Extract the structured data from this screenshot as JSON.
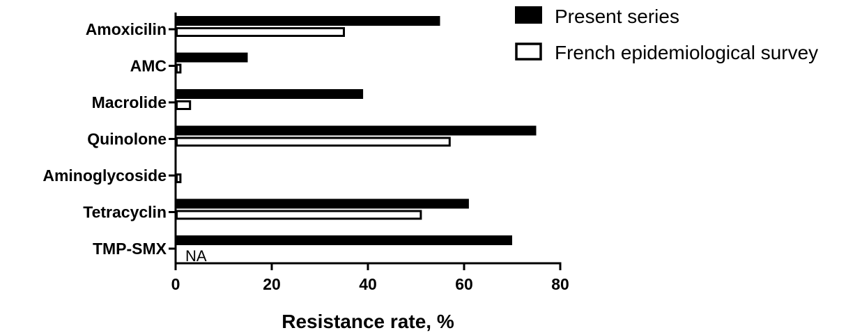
{
  "chart_data": {
    "type": "bar",
    "orientation": "horizontal",
    "categories": [
      "Amoxicilin",
      "AMC",
      "Macrolide",
      "Quinolone",
      "Aminoglycoside",
      "Tetracyclin",
      "TMP-SMX"
    ],
    "series": [
      {
        "name": "Present series",
        "values": [
          55,
          15,
          39,
          75,
          0,
          61,
          70
        ],
        "fill": "#000000"
      },
      {
        "name": "French epidemiological survey",
        "values": [
          35,
          1,
          3,
          57,
          1,
          51,
          null
        ],
        "fill": "#ffffff"
      }
    ],
    "annotations": [
      {
        "category": "TMP-SMX",
        "series": "French epidemiological survey",
        "text": "NA"
      }
    ],
    "xlabel": "Resistance rate, %",
    "xlim": [
      0,
      80
    ],
    "xticks": [
      0,
      20,
      40,
      60,
      80
    ],
    "grid": false,
    "legend_position": "top-right"
  }
}
